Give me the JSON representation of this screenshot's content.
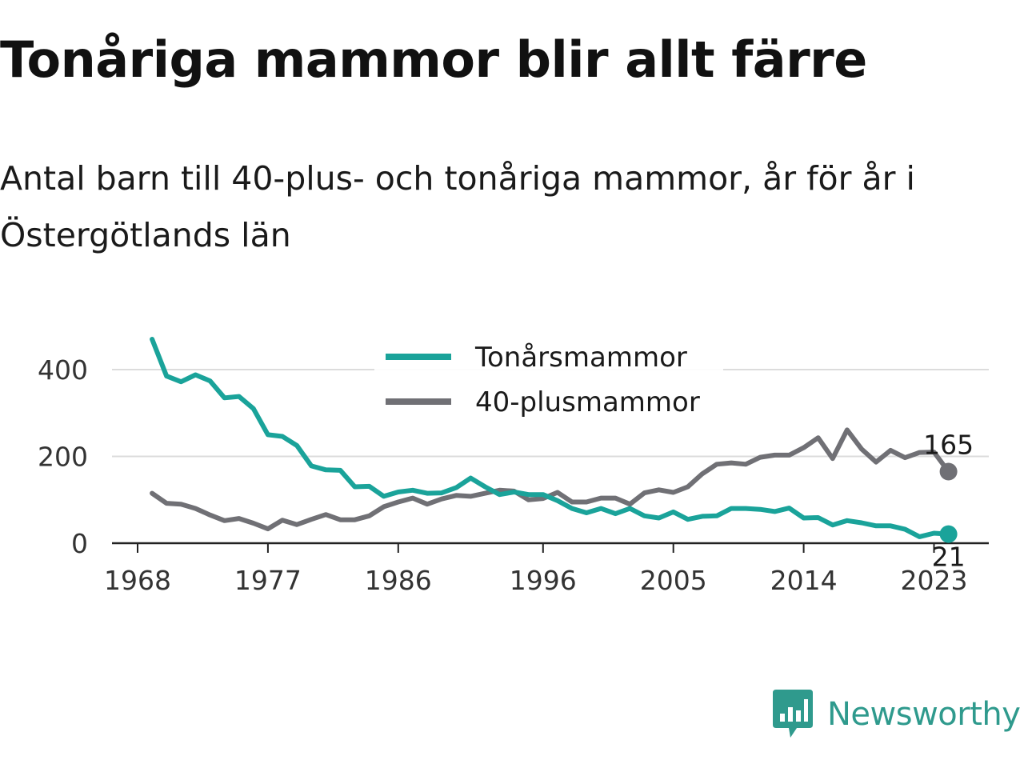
{
  "header": {
    "title": "Tonåriga mammor blir allt färre",
    "subtitle": "Antal barn till 40-plus- och tonåriga mammor, år för år i Östergötlands län"
  },
  "branding": {
    "logo_text": "Newsworthy",
    "logo_icon": "bar-chart-speech-bubble-icon",
    "color": "#2f9a8d"
  },
  "chart_data": {
    "type": "line",
    "x": [
      1969,
      1970,
      1971,
      1972,
      1973,
      1974,
      1975,
      1976,
      1977,
      1978,
      1979,
      1980,
      1981,
      1982,
      1983,
      1984,
      1985,
      1986,
      1987,
      1988,
      1989,
      1990,
      1991,
      1992,
      1993,
      1994,
      1995,
      1996,
      1997,
      1998,
      1999,
      2000,
      2001,
      2002,
      2003,
      2004,
      2005,
      2006,
      2007,
      2008,
      2009,
      2010,
      2011,
      2012,
      2013,
      2014,
      2015,
      2016,
      2017,
      2018,
      2019,
      2020,
      2021,
      2022,
      2023,
      2024
    ],
    "xticks": [
      "1968",
      "1977",
      "1986",
      "1996",
      "2005",
      "2014",
      "2023"
    ],
    "yticks": [
      "0",
      "200",
      "400"
    ],
    "ylim": [
      0,
      480
    ],
    "grid": true,
    "legend_position": "top-center",
    "series": [
      {
        "name": "Tonårsmammor",
        "color": "#1aa39a",
        "values": [
          470,
          385,
          372,
          388,
          374,
          335,
          338,
          310,
          250,
          246,
          225,
          178,
          169,
          168,
          130,
          131,
          108,
          118,
          122,
          115,
          116,
          128,
          150,
          130,
          112,
          118,
          112,
          112,
          98,
          80,
          70,
          80,
          68,
          80,
          63,
          58,
          72,
          55,
          62,
          63,
          80,
          80,
          78,
          73,
          81,
          58,
          59,
          42,
          52,
          47,
          40,
          40,
          32,
          15,
          23,
          21
        ],
        "end_label": "21"
      },
      {
        "name": "40-plusmammor",
        "color": "#707075",
        "values": [
          115,
          92,
          90,
          80,
          65,
          52,
          57,
          46,
          33,
          53,
          43,
          55,
          66,
          54,
          54,
          63,
          84,
          95,
          104,
          90,
          102,
          110,
          108,
          115,
          122,
          120,
          100,
          103,
          117,
          95,
          95,
          104,
          104,
          90,
          116,
          123,
          117,
          130,
          160,
          182,
          185,
          182,
          198,
          203,
          203,
          220,
          243,
          195,
          261,
          217,
          187,
          214,
          197,
          209,
          210,
          165
        ],
        "end_label": "165"
      }
    ]
  }
}
